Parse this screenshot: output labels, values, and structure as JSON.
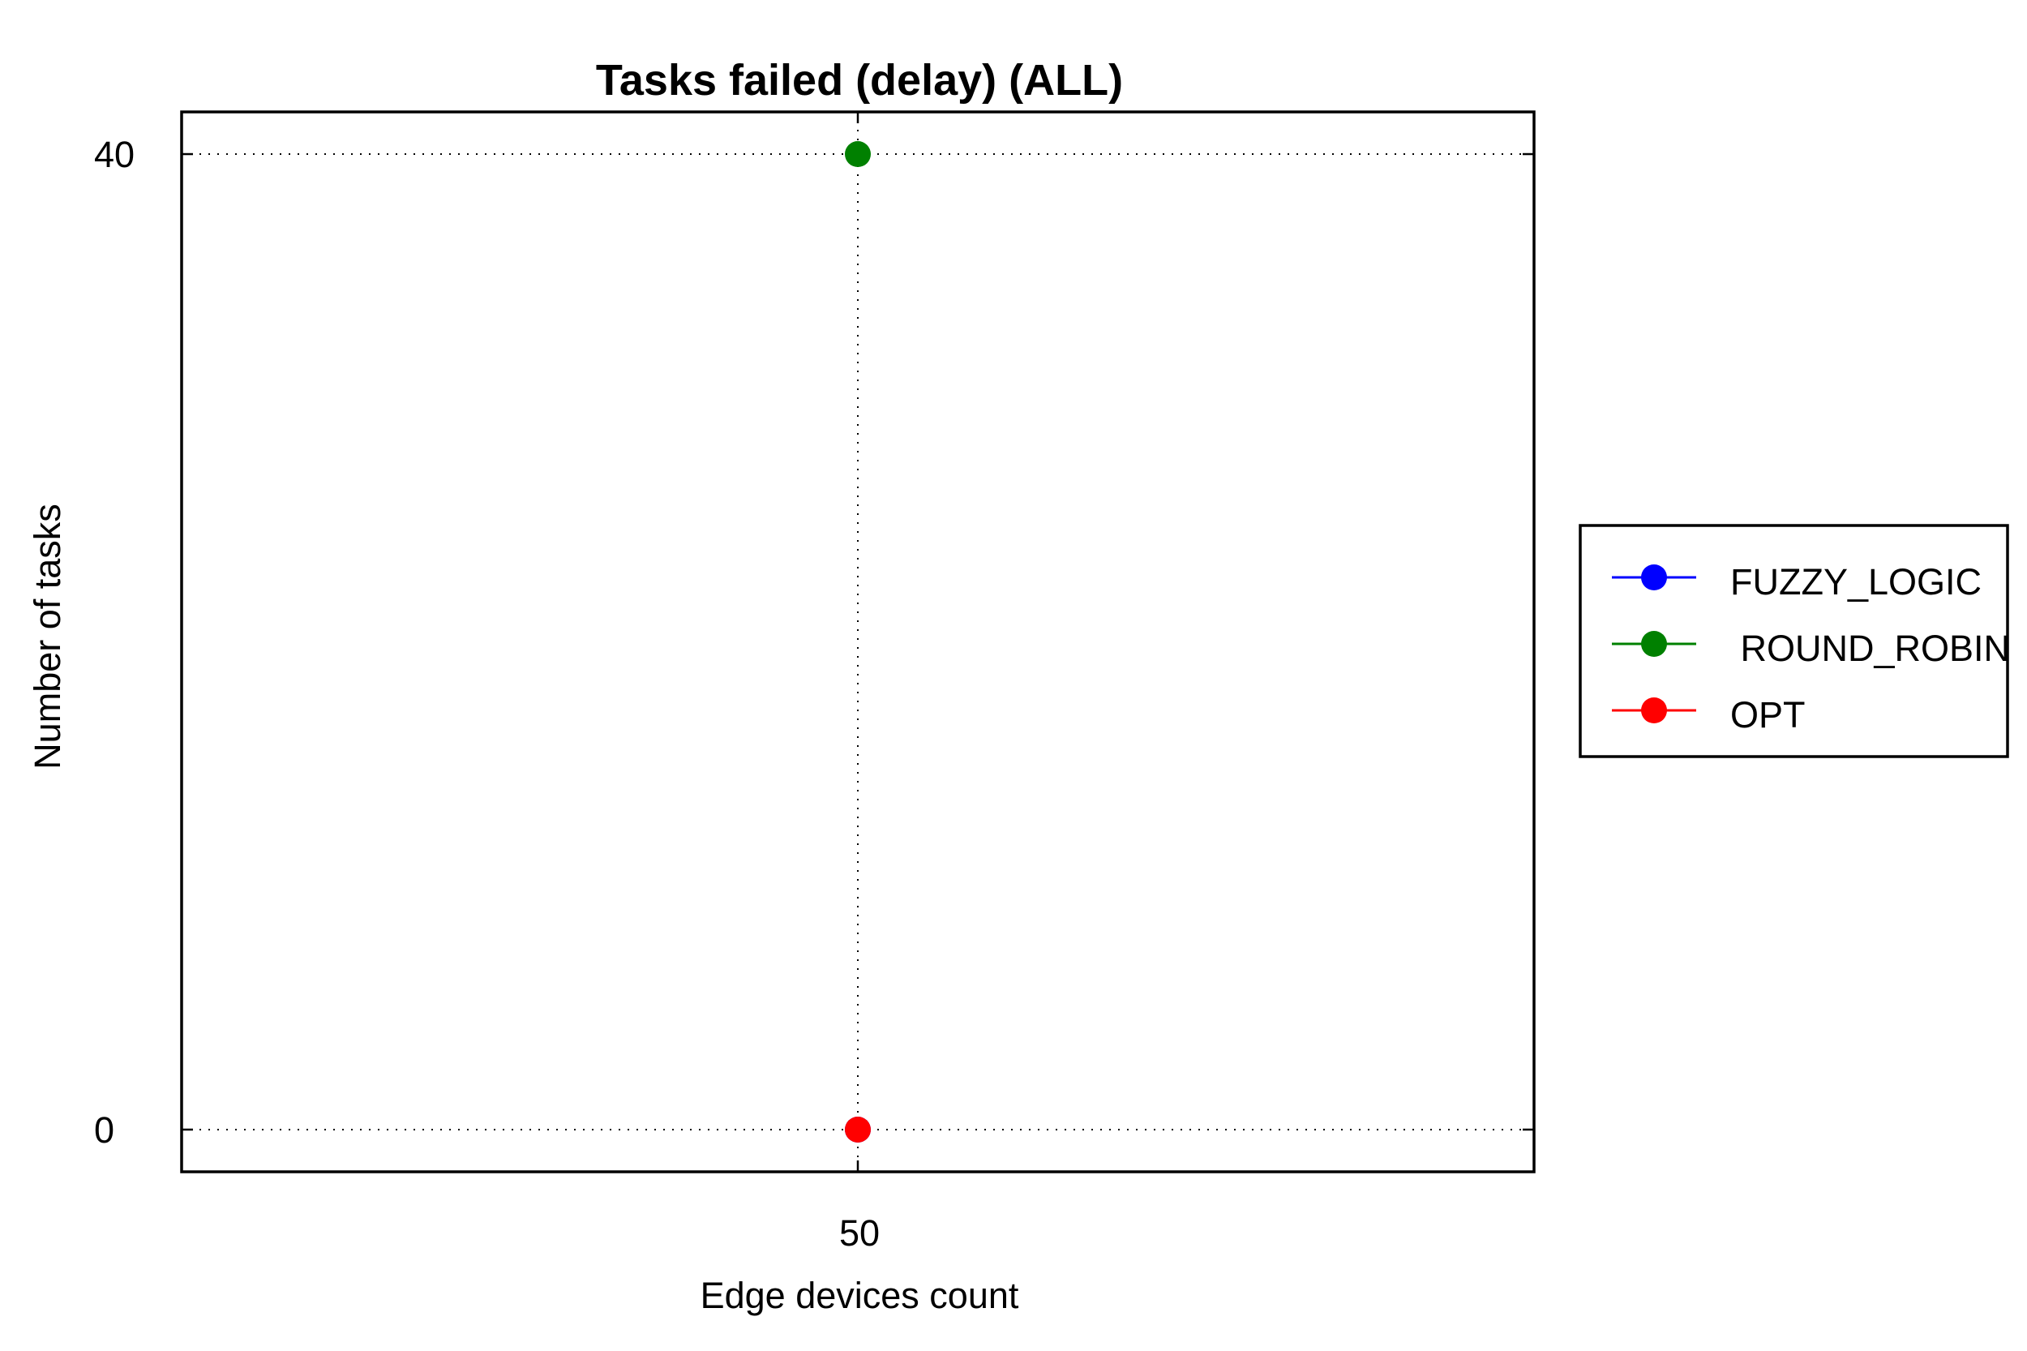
{
  "chart_data": {
    "type": "line",
    "title": "Tasks failed (delay) (ALL)",
    "xlabel": "Edge devices count",
    "ylabel": "Number of tasks",
    "x": [
      50
    ],
    "x_tick_labels": [
      "50"
    ],
    "y_ticks": [
      0,
      40
    ],
    "y_tick_labels": [
      "0",
      "40"
    ],
    "xlim": [
      45,
      55
    ],
    "ylim": [
      -1.73,
      41.73
    ],
    "grid": true,
    "legend_position": "right",
    "series": [
      {
        "name": "FUZZY_LOGIC",
        "color": "#0000ff",
        "values": [
          0
        ]
      },
      {
        "name": " ROUND_ROBIN",
        "color": "#008000",
        "values": [
          40
        ]
      },
      {
        "name": "OPT",
        "color": "#ff0000",
        "values": [
          0
        ]
      }
    ]
  }
}
